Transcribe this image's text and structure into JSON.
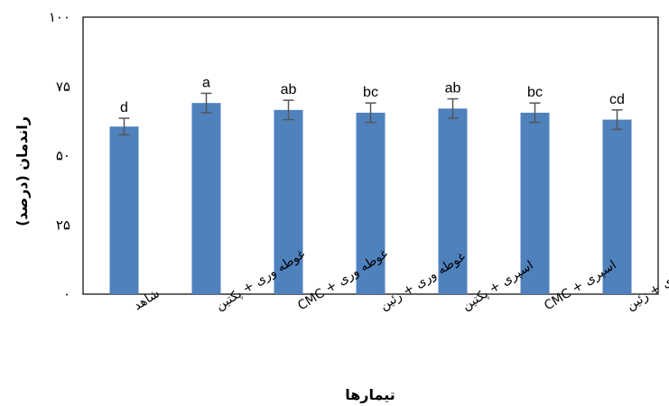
{
  "chart_data": {
    "type": "bar",
    "title": "",
    "xlabel": "تیمارها",
    "ylabel": "راندمان (درصد)",
    "ylim": [
      0,
      100
    ],
    "yticks": [
      0,
      25,
      50,
      75,
      100
    ],
    "ytick_labels": [
      "۰",
      "۲۵",
      "۵۰",
      "۷۵",
      "۱۰۰"
    ],
    "categories": [
      "شاهد",
      "غوطه وری + پکتین",
      "غوطه وری + CMC",
      "غوطه وری + زئین",
      "اسپری + پکتین",
      "اسپری + CMC",
      "اسپری + زئین"
    ],
    "values": [
      60.5,
      69,
      66.5,
      65.5,
      67,
      65.5,
      63
    ],
    "errors": [
      3,
      3.5,
      3.5,
      3.5,
      3.5,
      3.5,
      3.5
    ],
    "letters": [
      "d",
      "a",
      "ab",
      "bc",
      "ab",
      "bc",
      "cd"
    ],
    "bar_color": "#4f81bd",
    "error_color": "#555555",
    "grid": false,
    "legend": "none"
  }
}
